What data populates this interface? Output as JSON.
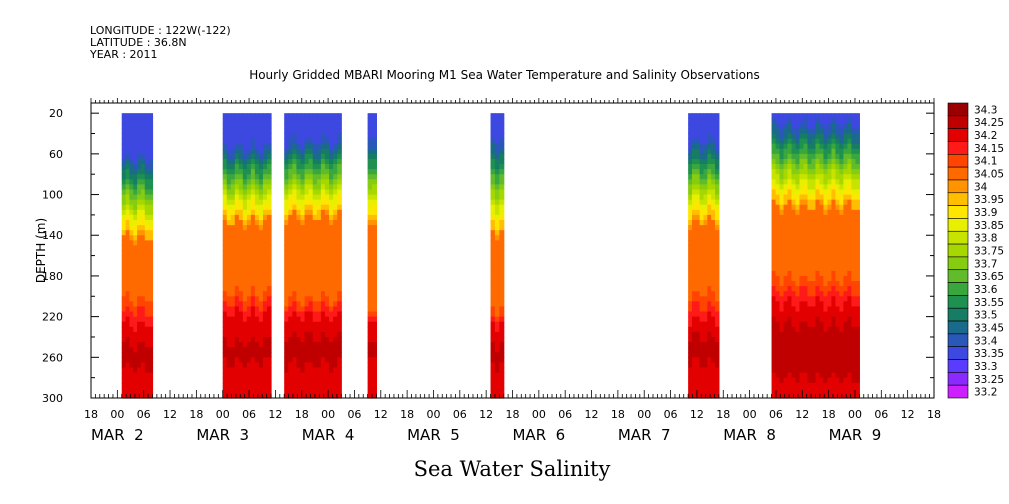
{
  "header": {
    "longitude": "LONGITUDE : 122W(-122)",
    "latitude": "LATITUDE : 36.8N",
    "year": "YEAR : 2011"
  },
  "chart_data": {
    "type": "heatmap",
    "title": "Hourly Gridded MBARI Mooring M1 Sea Water Temperature and Salinity Observations",
    "xlabel": "Sea Water Salinity",
    "ylabel": "DEPTH (m)",
    "ylim": [
      300,
      10
    ],
    "yticks": [
      20,
      60,
      100,
      140,
      180,
      220,
      260,
      300
    ],
    "xlim_hours": [
      -6,
      186
    ],
    "hour_ticks": [
      "18",
      "00",
      "06",
      "12",
      "18",
      "00",
      "06",
      "12",
      "18",
      "00",
      "06",
      "12",
      "18",
      "00",
      "06",
      "12",
      "18",
      "00",
      "06",
      "12",
      "18",
      "00",
      "06",
      "12",
      "18",
      "00",
      "06",
      "12",
      "18",
      "00",
      "06",
      "12",
      "18"
    ],
    "day_labels": [
      "MAR  2",
      "MAR  3",
      "MAR  4",
      "MAR  5",
      "MAR  6",
      "MAR  7",
      "MAR  8",
      "MAR  9"
    ],
    "colorbar": {
      "levels": [
        "34.3",
        "34.25",
        "34.2",
        "34.15",
        "34.1",
        "34.05",
        "34",
        "33.95",
        "33.9",
        "33.85",
        "33.8",
        "33.75",
        "33.7",
        "33.65",
        "33.6",
        "33.55",
        "33.5",
        "33.45",
        "33.4",
        "33.35",
        "33.3",
        "33.25",
        "33.2"
      ],
      "colors": [
        "#9b0000",
        "#c00000",
        "#e30000",
        "#ff1a1a",
        "#ff4500",
        "#ff6a00",
        "#ff9400",
        "#ffbe00",
        "#ffe600",
        "#e8f000",
        "#c6e400",
        "#a6d800",
        "#86cc10",
        "#62bb2a",
        "#3aa73e",
        "#1e9150",
        "#167c64",
        "#1a6a8c",
        "#2a58b8",
        "#3c48e0",
        "#5a3cff",
        "#8a2aff",
        "#cc20ff"
      ]
    },
    "data_blocks": [
      {
        "start_hour": 1,
        "end_hour": 8,
        "thermo_top": 58,
        "mix_base": 140,
        "orange_to": 200,
        "deep_from": 225,
        "core_from": 245,
        "core_to": 268
      },
      {
        "start_hour": 24,
        "end_hour": 35,
        "thermo_top": 48,
        "mix_base": 125,
        "orange_to": 195,
        "deep_from": 215,
        "core_from": 242,
        "core_to": 262
      },
      {
        "start_hour": 38,
        "end_hour": 51,
        "thermo_top": 42,
        "mix_base": 120,
        "orange_to": 200,
        "deep_from": 218,
        "core_from": 238,
        "core_to": 265
      },
      {
        "start_hour": 57,
        "end_hour": 59,
        "thermo_top": 45,
        "mix_base": 130,
        "orange_to": 215,
        "deep_from": 225,
        "core_from": 245,
        "core_to": 262
      },
      {
        "start_hour": 85,
        "end_hour": 88,
        "thermo_top": 40,
        "mix_base": 135,
        "orange_to": 210,
        "deep_from": 225,
        "core_from": 245,
        "core_to": 265
      },
      {
        "start_hour": 130,
        "end_hour": 137,
        "thermo_top": 42,
        "mix_base": 125,
        "orange_to": 195,
        "deep_from": 220,
        "core_from": 238,
        "core_to": 262
      },
      {
        "start_hour": 149,
        "end_hour": 169,
        "thermo_top": 25,
        "mix_base": 110,
        "orange_to": 180,
        "deep_from": 205,
        "core_from": 225,
        "core_to": 278
      }
    ],
    "grid": false
  }
}
